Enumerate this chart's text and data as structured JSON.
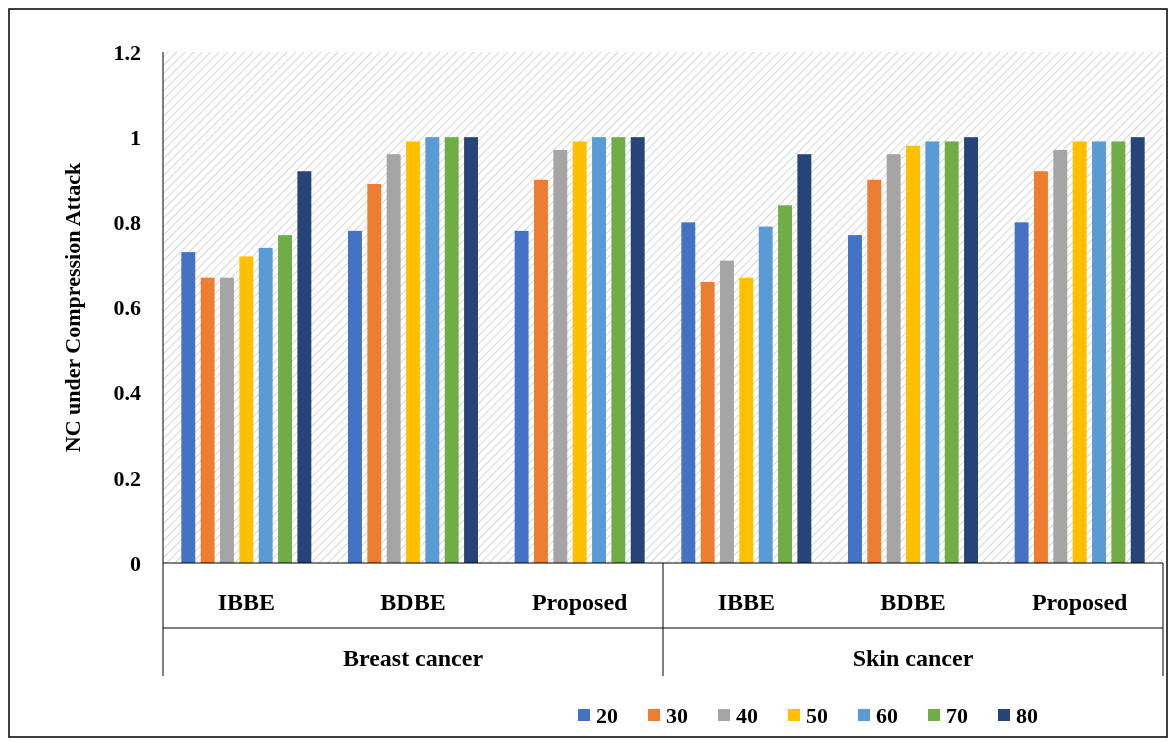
{
  "chart_data": {
    "type": "bar",
    "ylabel": "NC under Compression Attack",
    "categories": [
      "IBBE",
      "BDBE",
      "Proposed",
      "IBBE",
      "BDBE",
      "Proposed"
    ],
    "annotations": [
      "Breast cancer",
      "Skin cancer"
    ],
    "series": [
      {
        "name": "20",
        "color": "#4472c4",
        "values": [
          0.73,
          0.78,
          0.78,
          0.8,
          0.77,
          0.8
        ]
      },
      {
        "name": "30",
        "color": "#ed7d31",
        "values": [
          0.67,
          0.89,
          0.9,
          0.66,
          0.9,
          0.92
        ]
      },
      {
        "name": "40",
        "color": "#a5a5a5",
        "values": [
          0.67,
          0.96,
          0.97,
          0.71,
          0.96,
          0.97
        ]
      },
      {
        "name": "50",
        "color": "#ffc000",
        "values": [
          0.72,
          0.99,
          0.99,
          0.67,
          0.98,
          0.99
        ]
      },
      {
        "name": "60",
        "color": "#5b9bd5",
        "values": [
          0.74,
          1.0,
          1.0,
          0.79,
          0.99,
          0.99
        ]
      },
      {
        "name": "70",
        "color": "#70ad47",
        "values": [
          0.77,
          1.0,
          1.0,
          0.84,
          0.99,
          0.99
        ]
      },
      {
        "name": "80",
        "color": "#264478",
        "values": [
          0.92,
          1.0,
          1.0,
          0.96,
          1.0,
          1.0
        ]
      }
    ],
    "ylim": [
      0,
      1.2
    ],
    "yticks": [
      0,
      0.2,
      0.4,
      0.6,
      0.8,
      1,
      1.2
    ],
    "legend": "bottom"
  }
}
